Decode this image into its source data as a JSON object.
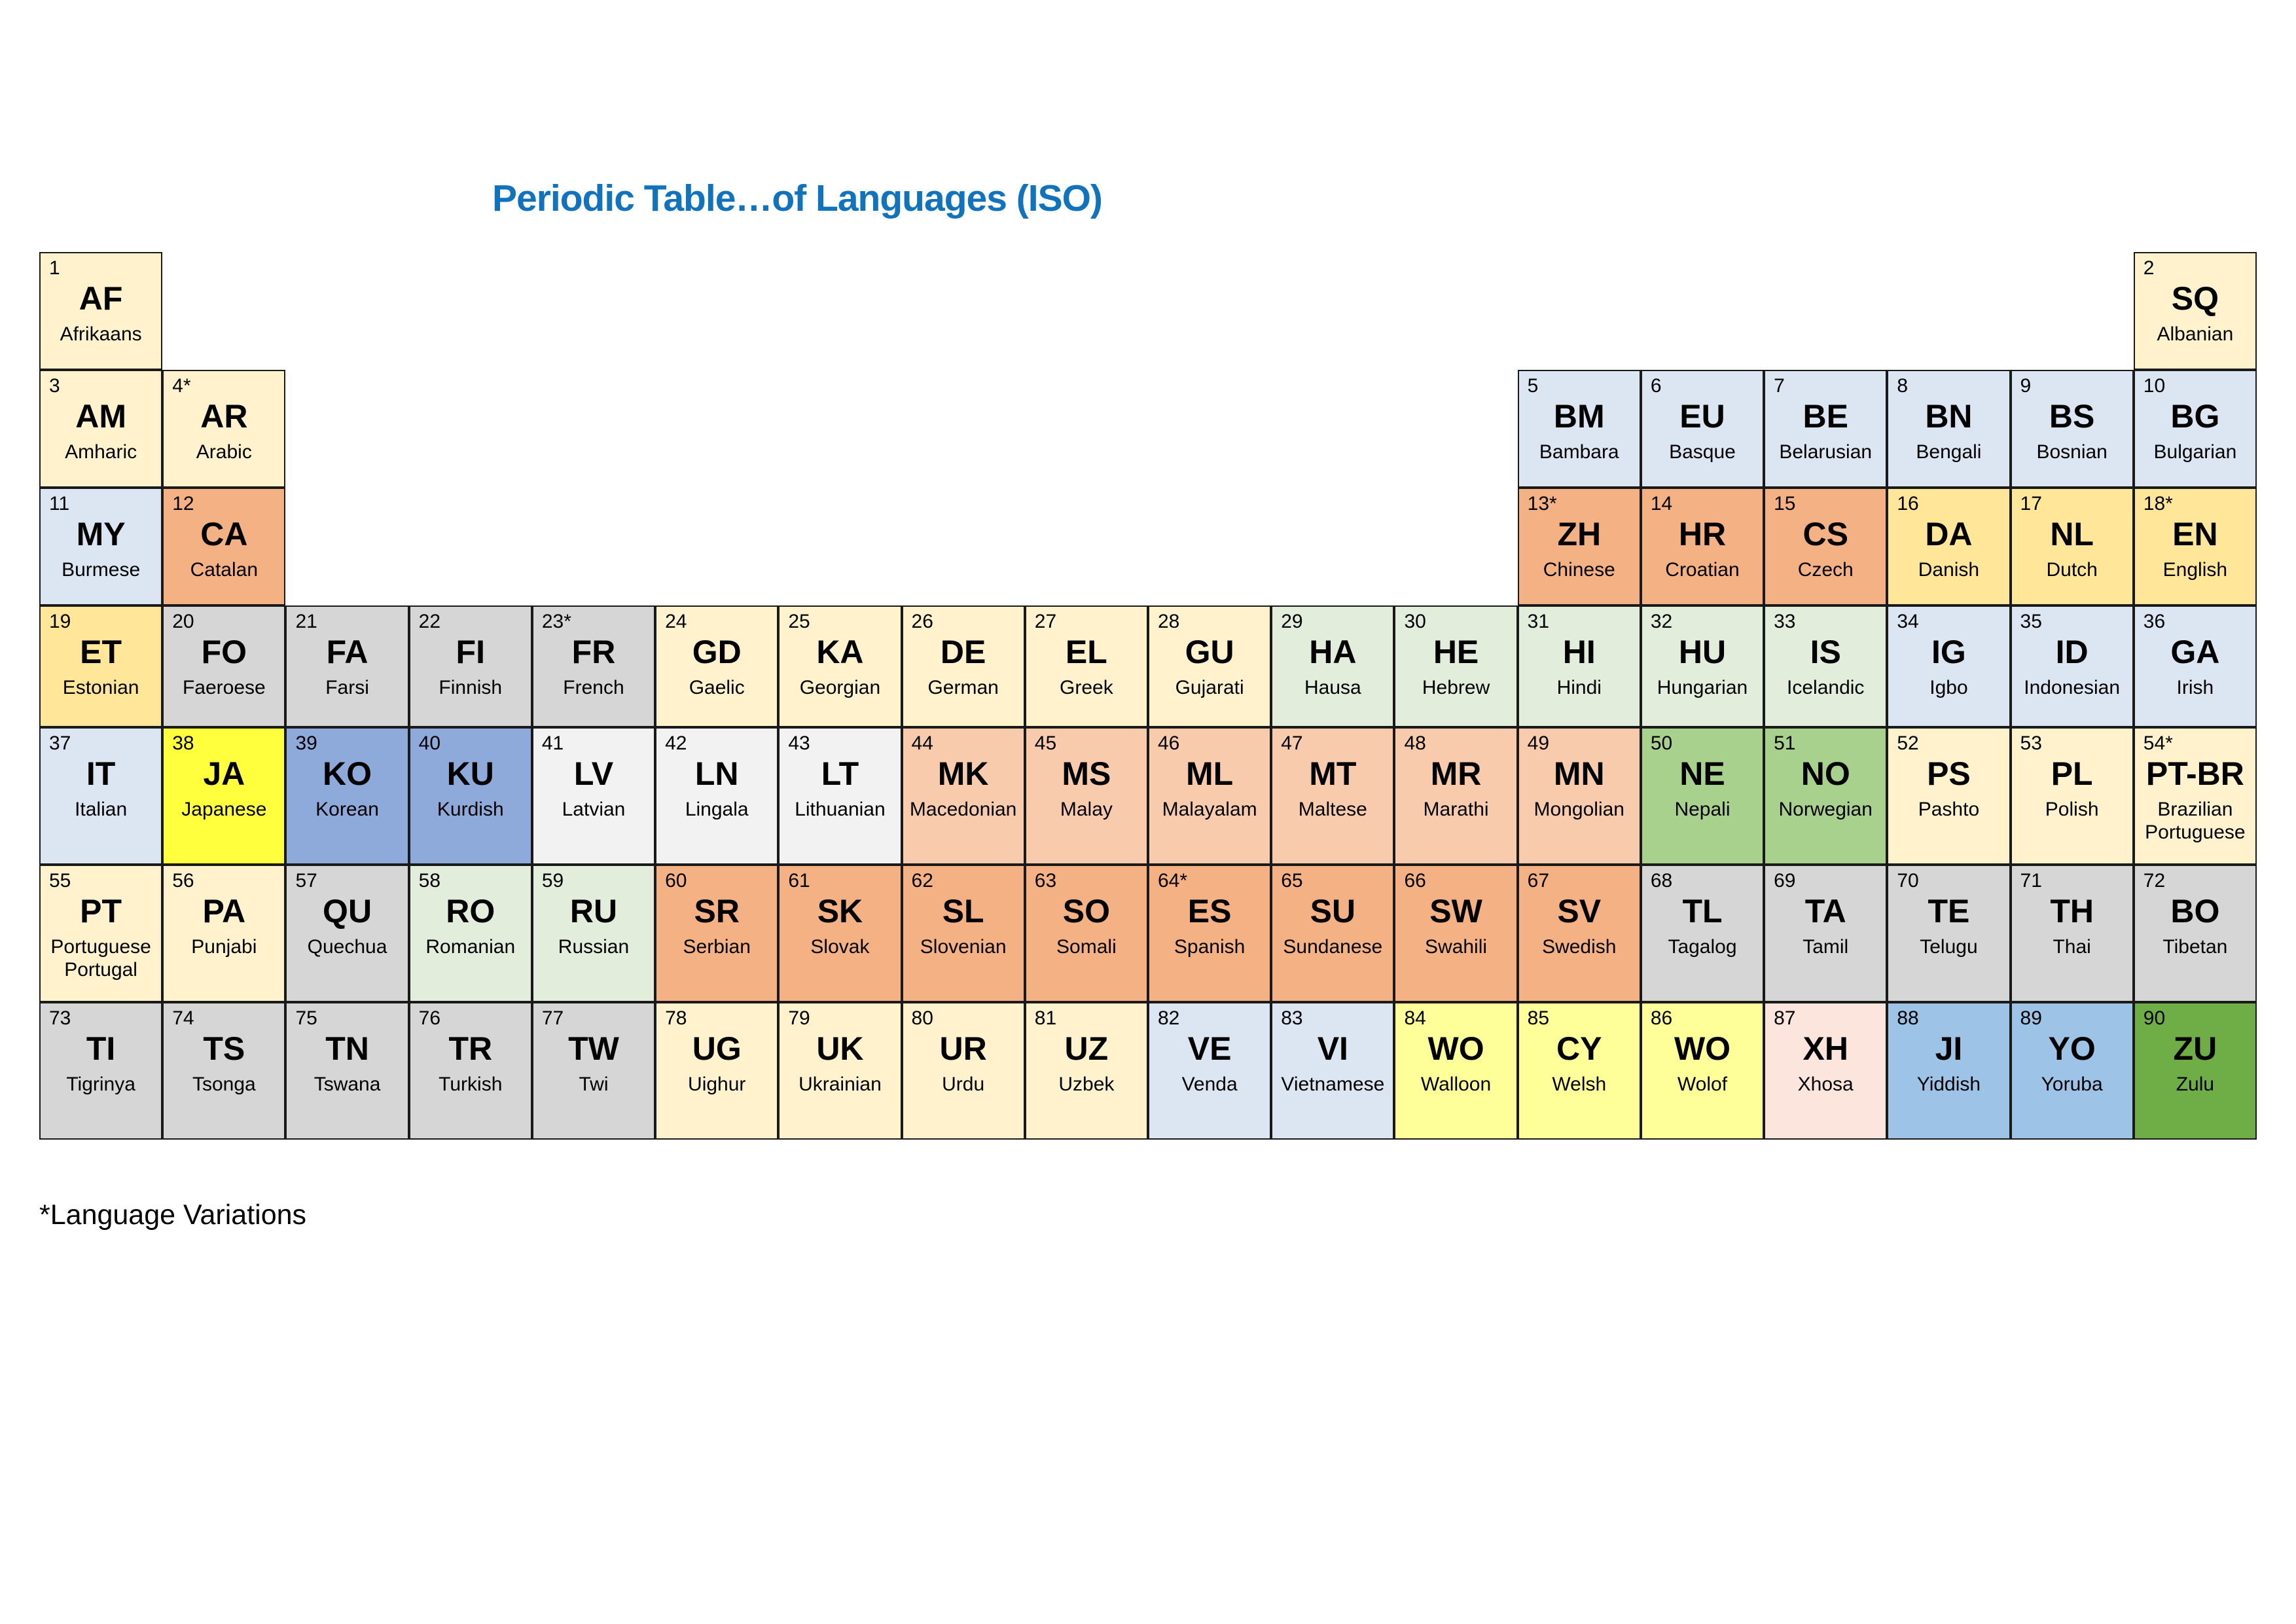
{
  "title": "Periodic Table…of Languages (ISO)",
  "title_color": "#1173BD",
  "footnote": "*Language Variations",
  "border_color": "#1a1a1a",
  "palette": {
    "cream": "#FFF2CC",
    "gold": "#FFE699",
    "lightblue": "#DCE6F3",
    "orange": "#F4B183",
    "peach": "#F8CBAD",
    "lightgreen": "#E2EDDC",
    "midgreen": "#A9D18E",
    "darkgreen": "#6FAD47",
    "grey": "#D6D6D6",
    "lightgrey": "#F2F2F2",
    "yellow": "#FFFF3D",
    "lightyellow": "#FFFF99",
    "midblue": "#8EAADB",
    "skyblue": "#9DC3E6",
    "pink": "#FBE5DC"
  },
  "cells": [
    {
      "n": "1",
      "c": "AF",
      "l": "Afrikaans",
      "row": 1,
      "col": 1,
      "bg": "cream"
    },
    {
      "n": "2",
      "c": "SQ",
      "l": "Albanian",
      "row": 1,
      "col": 18,
      "bg": "cream"
    },
    {
      "n": "3",
      "c": "AM",
      "l": "Amharic",
      "row": 2,
      "col": 1,
      "bg": "cream"
    },
    {
      "n": "4*",
      "c": "AR",
      "l": "Arabic",
      "row": 2,
      "col": 2,
      "bg": "cream"
    },
    {
      "n": "5",
      "c": "BM",
      "l": "Bambara",
      "row": 2,
      "col": 13,
      "bg": "lightblue"
    },
    {
      "n": "6",
      "c": "EU",
      "l": "Basque",
      "row": 2,
      "col": 14,
      "bg": "lightblue"
    },
    {
      "n": "7",
      "c": "BE",
      "l": "Belarusian",
      "row": 2,
      "col": 15,
      "bg": "lightblue"
    },
    {
      "n": "8",
      "c": "BN",
      "l": "Bengali",
      "row": 2,
      "col": 16,
      "bg": "lightblue"
    },
    {
      "n": "9",
      "c": "BS",
      "l": "Bosnian",
      "row": 2,
      "col": 17,
      "bg": "lightblue"
    },
    {
      "n": "10",
      "c": "BG",
      "l": "Bulgarian",
      "row": 2,
      "col": 18,
      "bg": "lightblue"
    },
    {
      "n": "11",
      "c": "MY",
      "l": "Burmese",
      "row": 3,
      "col": 1,
      "bg": "lightblue"
    },
    {
      "n": "12",
      "c": "CA",
      "l": "Catalan",
      "row": 3,
      "col": 2,
      "bg": "orange"
    },
    {
      "n": "13*",
      "c": "ZH",
      "l": "Chinese",
      "row": 3,
      "col": 13,
      "bg": "orange"
    },
    {
      "n": "14",
      "c": "HR",
      "l": "Croatian",
      "row": 3,
      "col": 14,
      "bg": "orange"
    },
    {
      "n": "15",
      "c": "CS",
      "l": "Czech",
      "row": 3,
      "col": 15,
      "bg": "orange"
    },
    {
      "n": "16",
      "c": "DA",
      "l": "Danish",
      "row": 3,
      "col": 16,
      "bg": "gold"
    },
    {
      "n": "17",
      "c": "NL",
      "l": "Dutch",
      "row": 3,
      "col": 17,
      "bg": "gold"
    },
    {
      "n": "18*",
      "c": "EN",
      "l": "English",
      "row": 3,
      "col": 18,
      "bg": "gold"
    },
    {
      "n": "19",
      "c": "ET",
      "l": "Estonian",
      "row": 4,
      "col": 1,
      "bg": "gold"
    },
    {
      "n": "20",
      "c": "FO",
      "l": "Faeroese",
      "row": 4,
      "col": 2,
      "bg": "grey"
    },
    {
      "n": "21",
      "c": "FA",
      "l": "Farsi",
      "row": 4,
      "col": 3,
      "bg": "grey"
    },
    {
      "n": "22",
      "c": "FI",
      "l": "Finnish",
      "row": 4,
      "col": 4,
      "bg": "grey"
    },
    {
      "n": "23*",
      "c": "FR",
      "l": "French",
      "row": 4,
      "col": 5,
      "bg": "grey"
    },
    {
      "n": "24",
      "c": "GD",
      "l": "Gaelic",
      "row": 4,
      "col": 6,
      "bg": "cream"
    },
    {
      "n": "25",
      "c": "KA",
      "l": "Georgian",
      "row": 4,
      "col": 7,
      "bg": "cream"
    },
    {
      "n": "26",
      "c": "DE",
      "l": "German",
      "row": 4,
      "col": 8,
      "bg": "cream"
    },
    {
      "n": "27",
      "c": "EL",
      "l": "Greek",
      "row": 4,
      "col": 9,
      "bg": "cream"
    },
    {
      "n": "28",
      "c": "GU",
      "l": "Gujarati",
      "row": 4,
      "col": 10,
      "bg": "cream"
    },
    {
      "n": "29",
      "c": "HA",
      "l": "Hausa",
      "row": 4,
      "col": 11,
      "bg": "lightgreen"
    },
    {
      "n": "30",
      "c": "HE",
      "l": "Hebrew",
      "row": 4,
      "col": 12,
      "bg": "lightgreen"
    },
    {
      "n": "31",
      "c": "HI",
      "l": "Hindi",
      "row": 4,
      "col": 13,
      "bg": "lightgreen"
    },
    {
      "n": "32",
      "c": "HU",
      "l": "Hungarian",
      "row": 4,
      "col": 14,
      "bg": "lightgreen"
    },
    {
      "n": "33",
      "c": "IS",
      "l": "Icelandic",
      "row": 4,
      "col": 15,
      "bg": "lightgreen"
    },
    {
      "n": "34",
      "c": "IG",
      "l": "Igbo",
      "row": 4,
      "col": 16,
      "bg": "lightblue"
    },
    {
      "n": "35",
      "c": "ID",
      "l": "Indonesian",
      "row": 4,
      "col": 17,
      "bg": "lightblue"
    },
    {
      "n": "36",
      "c": "GA",
      "l": "Irish",
      "row": 4,
      "col": 18,
      "bg": "lightblue"
    },
    {
      "n": "37",
      "c": "IT",
      "l": "Italian",
      "row": 5,
      "col": 1,
      "bg": "lightblue"
    },
    {
      "n": "38",
      "c": "JA",
      "l": "Japanese",
      "row": 5,
      "col": 2,
      "bg": "yellow"
    },
    {
      "n": "39",
      "c": "KO",
      "l": "Korean",
      "row": 5,
      "col": 3,
      "bg": "midblue"
    },
    {
      "n": "40",
      "c": "KU",
      "l": "Kurdish",
      "row": 5,
      "col": 4,
      "bg": "midblue"
    },
    {
      "n": "41",
      "c": "LV",
      "l": "Latvian",
      "row": 5,
      "col": 5,
      "bg": "lightgrey"
    },
    {
      "n": "42",
      "c": "LN",
      "l": "Lingala",
      "row": 5,
      "col": 6,
      "bg": "lightgrey"
    },
    {
      "n": "43",
      "c": "LT",
      "l": "Lithuanian",
      "row": 5,
      "col": 7,
      "bg": "lightgrey"
    },
    {
      "n": "44",
      "c": "MK",
      "l": "Macedonian",
      "row": 5,
      "col": 8,
      "bg": "peach"
    },
    {
      "n": "45",
      "c": "MS",
      "l": "Malay",
      "row": 5,
      "col": 9,
      "bg": "peach"
    },
    {
      "n": "46",
      "c": "ML",
      "l": "Malayalam",
      "row": 5,
      "col": 10,
      "bg": "peach"
    },
    {
      "n": "47",
      "c": "MT",
      "l": "Maltese",
      "row": 5,
      "col": 11,
      "bg": "peach"
    },
    {
      "n": "48",
      "c": "MR",
      "l": "Marathi",
      "row": 5,
      "col": 12,
      "bg": "peach"
    },
    {
      "n": "49",
      "c": "MN",
      "l": "Mongolian",
      "row": 5,
      "col": 13,
      "bg": "peach"
    },
    {
      "n": "50",
      "c": "NE",
      "l": "Nepali",
      "row": 5,
      "col": 14,
      "bg": "midgreen"
    },
    {
      "n": "51",
      "c": "NO",
      "l": "Norwegian",
      "row": 5,
      "col": 15,
      "bg": "midgreen"
    },
    {
      "n": "52",
      "c": "PS",
      "l": "Pashto",
      "row": 5,
      "col": 16,
      "bg": "cream"
    },
    {
      "n": "53",
      "c": "PL",
      "l": "Polish",
      "row": 5,
      "col": 17,
      "bg": "cream"
    },
    {
      "n": "54*",
      "c": "PT-BR",
      "l": "Brazilian Portuguese",
      "row": 5,
      "col": 18,
      "bg": "cream"
    },
    {
      "n": "55",
      "c": "PT",
      "l": "Portuguese Portugal",
      "row": 6,
      "col": 1,
      "bg": "cream"
    },
    {
      "n": "56",
      "c": "PA",
      "l": "Punjabi",
      "row": 6,
      "col": 2,
      "bg": "cream"
    },
    {
      "n": "57",
      "c": "QU",
      "l": "Quechua",
      "row": 6,
      "col": 3,
      "bg": "grey"
    },
    {
      "n": "58",
      "c": "RO",
      "l": "Romanian",
      "row": 6,
      "col": 4,
      "bg": "lightgreen"
    },
    {
      "n": "59",
      "c": "RU",
      "l": "Russian",
      "row": 6,
      "col": 5,
      "bg": "lightgreen"
    },
    {
      "n": "60",
      "c": "SR",
      "l": "Serbian",
      "row": 6,
      "col": 6,
      "bg": "orange"
    },
    {
      "n": "61",
      "c": "SK",
      "l": "Slovak",
      "row": 6,
      "col": 7,
      "bg": "orange"
    },
    {
      "n": "62",
      "c": "SL",
      "l": "Slovenian",
      "row": 6,
      "col": 8,
      "bg": "orange"
    },
    {
      "n": "63",
      "c": "SO",
      "l": "Somali",
      "row": 6,
      "col": 9,
      "bg": "orange"
    },
    {
      "n": "64*",
      "c": "ES",
      "l": "Spanish",
      "row": 6,
      "col": 10,
      "bg": "orange"
    },
    {
      "n": "65",
      "c": "SU",
      "l": "Sundanese",
      "row": 6,
      "col": 11,
      "bg": "orange"
    },
    {
      "n": "66",
      "c": "SW",
      "l": "Swahili",
      "row": 6,
      "col": 12,
      "bg": "orange"
    },
    {
      "n": "67",
      "c": "SV",
      "l": "Swedish",
      "row": 6,
      "col": 13,
      "bg": "orange"
    },
    {
      "n": "68",
      "c": "TL",
      "l": "Tagalog",
      "row": 6,
      "col": 14,
      "bg": "grey"
    },
    {
      "n": "69",
      "c": "TA",
      "l": "Tamil",
      "row": 6,
      "col": 15,
      "bg": "grey"
    },
    {
      "n": "70",
      "c": "TE",
      "l": "Telugu",
      "row": 6,
      "col": 16,
      "bg": "grey"
    },
    {
      "n": "71",
      "c": "TH",
      "l": "Thai",
      "row": 6,
      "col": 17,
      "bg": "grey"
    },
    {
      "n": "72",
      "c": "BO",
      "l": "Tibetan",
      "row": 6,
      "col": 18,
      "bg": "grey"
    },
    {
      "n": "73",
      "c": "TI",
      "l": "Tigrinya",
      "row": 7,
      "col": 1,
      "bg": "grey"
    },
    {
      "n": "74",
      "c": "TS",
      "l": "Tsonga",
      "row": 7,
      "col": 2,
      "bg": "grey"
    },
    {
      "n": "75",
      "c": "TN",
      "l": "Tswana",
      "row": 7,
      "col": 3,
      "bg": "grey"
    },
    {
      "n": "76",
      "c": "TR",
      "l": "Turkish",
      "row": 7,
      "col": 4,
      "bg": "grey"
    },
    {
      "n": "77",
      "c": "TW",
      "l": "Twi",
      "row": 7,
      "col": 5,
      "bg": "grey"
    },
    {
      "n": "78",
      "c": "UG",
      "l": "Uighur",
      "row": 7,
      "col": 6,
      "bg": "cream"
    },
    {
      "n": "79",
      "c": "UK",
      "l": "Ukrainian",
      "row": 7,
      "col": 7,
      "bg": "cream"
    },
    {
      "n": "80",
      "c": "UR",
      "l": "Urdu",
      "row": 7,
      "col": 8,
      "bg": "cream"
    },
    {
      "n": "81",
      "c": "UZ",
      "l": "Uzbek",
      "row": 7,
      "col": 9,
      "bg": "cream"
    },
    {
      "n": "82",
      "c": "VE",
      "l": "Venda",
      "row": 7,
      "col": 10,
      "bg": "lightblue"
    },
    {
      "n": "83",
      "c": "VI",
      "l": "Vietnamese",
      "row": 7,
      "col": 11,
      "bg": "lightblue"
    },
    {
      "n": "84",
      "c": "WO",
      "l": "Walloon",
      "row": 7,
      "col": 12,
      "bg": "lightyellow"
    },
    {
      "n": "85",
      "c": "CY",
      "l": "Welsh",
      "row": 7,
      "col": 13,
      "bg": "lightyellow"
    },
    {
      "n": "86",
      "c": "WO",
      "l": "Wolof",
      "row": 7,
      "col": 14,
      "bg": "lightyellow"
    },
    {
      "n": "87",
      "c": "XH",
      "l": "Xhosa",
      "row": 7,
      "col": 15,
      "bg": "pink"
    },
    {
      "n": "88",
      "c": "JI",
      "l": "Yiddish",
      "row": 7,
      "col": 16,
      "bg": "skyblue"
    },
    {
      "n": "89",
      "c": "YO",
      "l": "Yoruba",
      "row": 7,
      "col": 17,
      "bg": "skyblue"
    },
    {
      "n": "90",
      "c": "ZU",
      "l": "Zulu",
      "row": 7,
      "col": 18,
      "bg": "darkgreen"
    }
  ]
}
